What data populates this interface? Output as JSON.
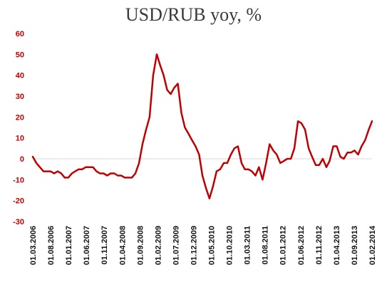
{
  "chart_data": {
    "type": "line",
    "title": "USD/RUB yoy, %",
    "xlabel": "",
    "ylabel": "",
    "ylim": [
      -30,
      60
    ],
    "yticks": [
      60,
      50,
      40,
      30,
      20,
      10,
      0,
      -10,
      -20,
      -30
    ],
    "xticks": [
      "01.03.2006",
      "01.08.2006",
      "01.01.2007",
      "01.06.2007",
      "01.11.2007",
      "01.04.2008",
      "01.09.2008",
      "01.02.2009",
      "01.07.2009",
      "01.12.2009",
      "01.05.2010",
      "01.10.2010",
      "01.03.2011",
      "01.08.2011",
      "01.01.2012",
      "01.06.2012",
      "01.11.2012",
      "01.04.2013",
      "01.09.2013",
      "01.02.2014"
    ],
    "grid": false,
    "legend": "none",
    "colors": {
      "line": "#c00000",
      "ytick": "#c00000",
      "xtick": "#111111"
    },
    "series": [
      {
        "x": [
          "2006-03-01",
          "2006-04-01",
          "2006-05-01",
          "2006-06-01",
          "2006-07-01",
          "2006-08-01",
          "2006-09-01",
          "2006-10-01",
          "2006-11-01",
          "2006-12-01",
          "2007-01-01",
          "2007-02-01",
          "2007-03-01",
          "2007-04-01",
          "2007-05-01",
          "2007-06-01",
          "2007-07-01",
          "2007-08-01",
          "2007-09-01",
          "2007-10-01",
          "2007-11-01",
          "2007-12-01",
          "2008-01-01",
          "2008-02-01",
          "2008-03-01",
          "2008-04-01",
          "2008-05-01",
          "2008-06-01",
          "2008-07-01",
          "2008-08-01",
          "2008-09-01",
          "2008-10-01",
          "2008-11-01",
          "2008-12-01",
          "2009-01-01",
          "2009-02-01",
          "2009-03-01",
          "2009-04-01",
          "2009-05-01",
          "2009-06-01",
          "2009-07-01",
          "2009-08-01",
          "2009-09-01",
          "2009-10-01",
          "2009-11-01",
          "2009-12-01",
          "2010-01-01",
          "2010-02-01",
          "2010-03-01",
          "2010-04-01",
          "2010-05-01",
          "2010-06-01",
          "2010-07-01",
          "2010-08-01",
          "2010-09-01",
          "2010-10-01",
          "2010-11-01",
          "2010-12-01",
          "2011-01-01",
          "2011-02-01",
          "2011-03-01",
          "2011-04-01",
          "2011-05-01",
          "2011-06-01",
          "2011-07-01",
          "2011-08-01",
          "2011-09-01",
          "2011-10-01",
          "2011-11-01",
          "2011-12-01",
          "2012-01-01",
          "2012-02-01",
          "2012-03-01",
          "2012-04-01",
          "2012-05-01",
          "2012-06-01",
          "2012-07-01",
          "2012-08-01",
          "2012-09-01",
          "2012-10-01",
          "2012-11-01",
          "2012-12-01",
          "2013-01-01",
          "2013-02-01",
          "2013-03-01",
          "2013-04-01",
          "2013-05-01",
          "2013-06-01",
          "2013-07-01",
          "2013-08-01",
          "2013-09-01",
          "2013-10-01",
          "2013-11-01",
          "2013-12-01",
          "2014-01-01",
          "2014-02-01",
          "2014-03-01"
        ],
        "values": [
          1,
          -2,
          -4,
          -6,
          -6,
          -6,
          -7,
          -6,
          -7,
          -9,
          -9,
          -7,
          -6,
          -5,
          -5,
          -4,
          -4,
          -4,
          -6,
          -7,
          -7,
          -8,
          -7,
          -7,
          -8,
          -8,
          -9,
          -9,
          -9,
          -7,
          -2,
          7,
          14,
          20,
          40,
          50,
          45,
          40,
          33,
          31,
          34,
          36,
          22,
          15,
          12,
          9,
          6,
          2,
          -8,
          -14,
          -19,
          -13,
          -6,
          -5,
          -2,
          -2,
          2,
          5,
          6,
          -2,
          -5,
          -5,
          -6,
          -8,
          -4,
          -10,
          -2,
          7,
          4,
          2,
          -2,
          -1,
          0,
          0,
          5,
          18,
          17,
          14,
          5,
          1,
          -3,
          -3,
          0,
          -4,
          -1,
          6,
          6,
          1,
          0,
          3,
          3,
          4,
          2,
          6,
          9,
          14,
          18
        ]
      }
    ]
  }
}
